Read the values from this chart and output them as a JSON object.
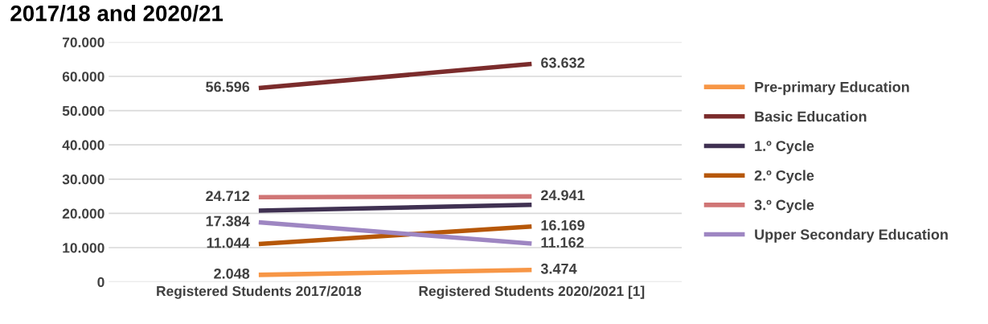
{
  "chart_data": {
    "type": "line",
    "title": "2017/18 and 2020/21",
    "categories": [
      "Registered Students 2017/2018",
      "Registered Students 2020/2021 [1]"
    ],
    "series": [
      {
        "name": "Pre-primary Education",
        "color": "#f79646",
        "values": [
          2048,
          3474
        ],
        "value_labels": [
          "2.048",
          "3.474"
        ]
      },
      {
        "name": "Basic Education",
        "color": "#7b2c2c",
        "values": [
          56596,
          63632
        ],
        "value_labels": [
          "56.596",
          "63.632"
        ]
      },
      {
        "name": "1.º Cycle",
        "color": "#403152",
        "values": [
          20800,
          22500
        ]
      },
      {
        "name": "2.º Cycle",
        "color": "#b65708",
        "values": [
          11044,
          16169
        ],
        "value_labels": [
          "11.044",
          "16.169"
        ]
      },
      {
        "name": "3.º Cycle",
        "color": "#d07575",
        "values": [
          24712,
          24941
        ],
        "value_labels": [
          "24.712",
          "24.941"
        ]
      },
      {
        "name": "Upper Secondary Education",
        "color": "#9e86c2",
        "values": [
          17384,
          11162
        ],
        "value_labels": [
          "17.384",
          "11.162"
        ]
      }
    ],
    "ylim": [
      0,
      70000
    ],
    "yticks": [
      {
        "value": 0,
        "label": "0"
      },
      {
        "value": 10000,
        "label": "10.000"
      },
      {
        "value": 20000,
        "label": "20.000"
      },
      {
        "value": 30000,
        "label": "30.000"
      },
      {
        "value": 40000,
        "label": "40.000"
      },
      {
        "value": 50000,
        "label": "50.000"
      },
      {
        "value": 60000,
        "label": "60.000"
      },
      {
        "value": 70000,
        "label": "70.000"
      }
    ],
    "grid": "y",
    "legend": "right",
    "marker": "none",
    "line_style": "solid"
  }
}
